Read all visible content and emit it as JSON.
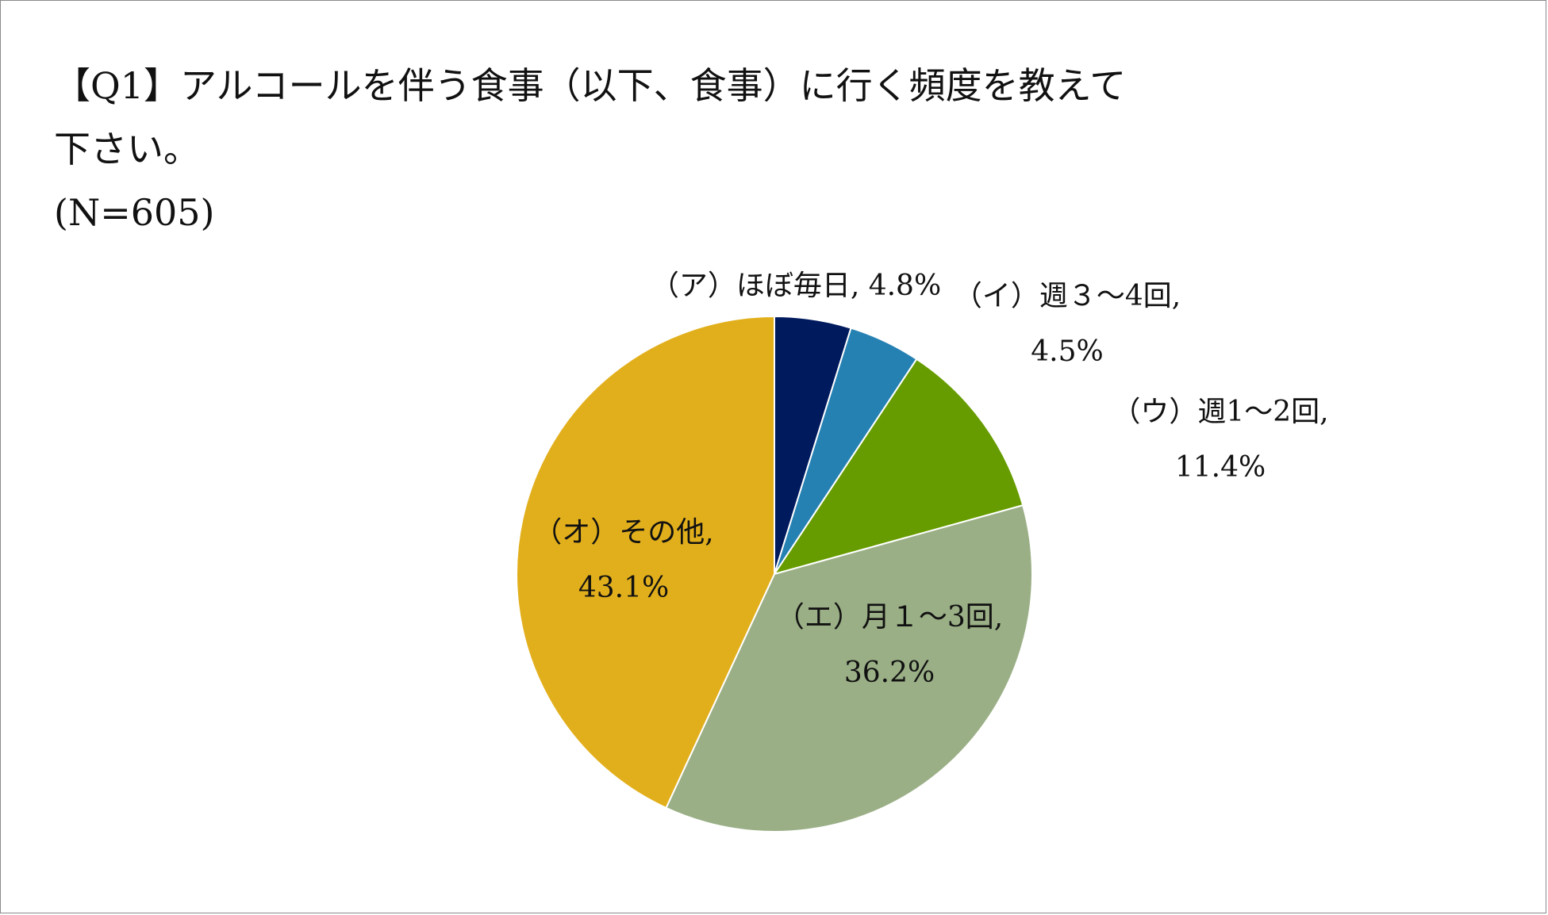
{
  "title": {
    "line1": "【Q1】アルコールを伴う食事（以下、食事）に行く頻度を教えて",
    "line2": "下さい。",
    "line3": "(N=605)"
  },
  "chart_data": {
    "type": "pie",
    "title": "【Q1】アルコールを伴う食事（以下、食事）に行く頻度を教えて下さい。",
    "n": "(N=605)",
    "slices": [
      {
        "label": "（ア）ほぼ毎日",
        "value": 4.8,
        "value_text": "4.8%",
        "color": "#001a5e"
      },
      {
        "label": "（イ）週３～4回",
        "value": 4.5,
        "value_text": "4.5%",
        "color": "#2681b3"
      },
      {
        "label": "（ウ）週1～2回",
        "value": 11.4,
        "value_text": "11.4%",
        "color": "#669c00"
      },
      {
        "label": "（エ）月１～3回",
        "value": 36.2,
        "value_text": "36.2%",
        "color": "#9aaf86"
      },
      {
        "label": "（オ）その他",
        "value": 43.1,
        "value_text": "43.1%",
        "color": "#e2af1c"
      }
    ],
    "start_angle_deg": 0,
    "direction": "clockwise",
    "legend": "none",
    "labels": {
      "a": {
        "line1": "（ア）ほぼ毎日, 4.8%"
      },
      "b": {
        "line1": "（イ）週３～4回,",
        "line2": "4.5%"
      },
      "c": {
        "line1": "（ウ）週1～2回,",
        "line2": "11.4%"
      },
      "d": {
        "line1": "（エ）月１～3回,",
        "line2": "36.2%"
      },
      "e": {
        "line1": "（オ）その他,",
        "line2": "43.1%"
      }
    }
  }
}
